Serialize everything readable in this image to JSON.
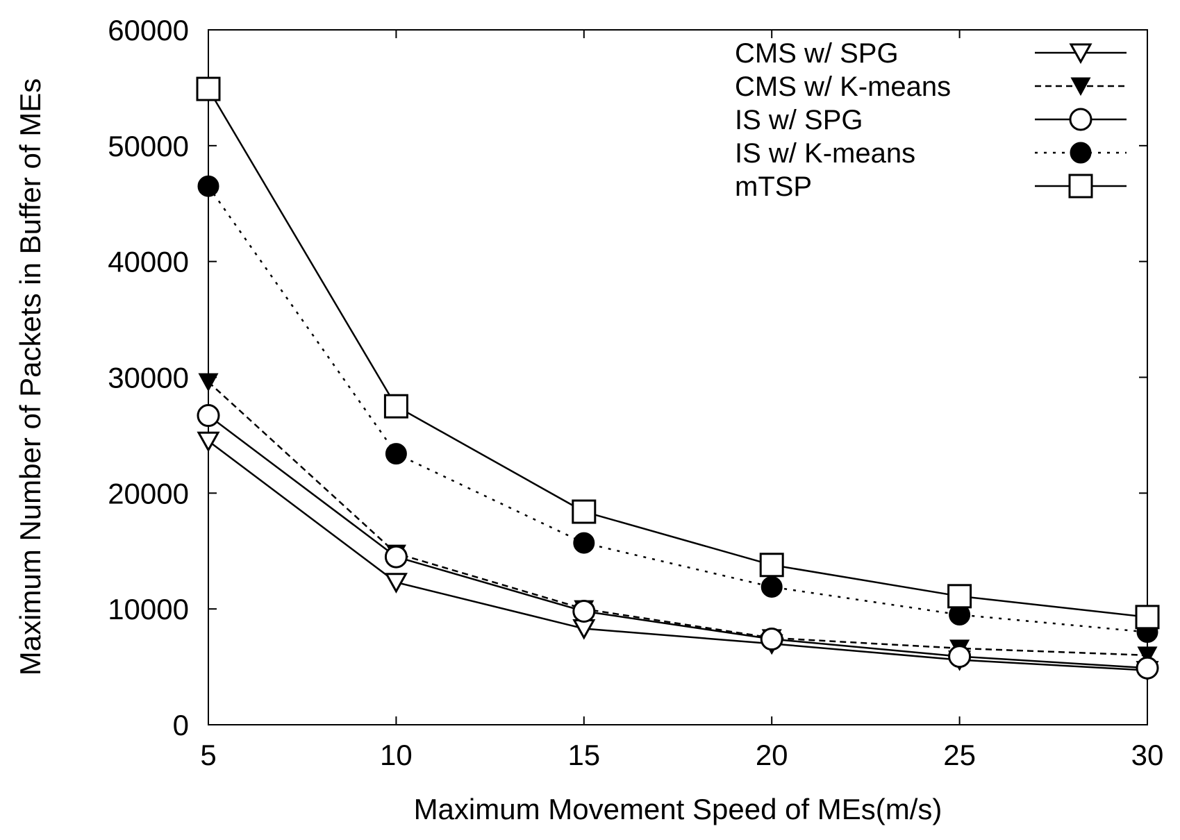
{
  "chart_data": {
    "type": "line",
    "title": "",
    "xlabel": "Maximum Movement Speed of MEs(m/s)",
    "ylabel": "Maximum Number of Packets in Buffer of MEs",
    "x": [
      5,
      10,
      15,
      20,
      25,
      30
    ],
    "xlim": [
      5,
      30
    ],
    "ylim": [
      0,
      60000
    ],
    "xticks": [
      "5",
      "10",
      "15",
      "20",
      "25",
      "30"
    ],
    "yticks": [
      "0",
      "10000",
      "20000",
      "30000",
      "40000",
      "50000",
      "60000"
    ],
    "grid": false,
    "legend_position": "top-right",
    "series": [
      {
        "name": "CMS w/ SPG",
        "values": [
          24500,
          12300,
          8300,
          7000,
          5600,
          4700
        ],
        "marker": "triangle-down-open",
        "line_style": "solid"
      },
      {
        "name": "CMS w/ K-means",
        "values": [
          29600,
          14800,
          10000,
          7500,
          6600,
          6000
        ],
        "marker": "triangle-down-filled",
        "line_style": "dashed"
      },
      {
        "name": "IS w/ SPG",
        "values": [
          26700,
          14500,
          9800,
          7400,
          5900,
          4900
        ],
        "marker": "circle-open",
        "line_style": "solid"
      },
      {
        "name": "IS w/ K-means",
        "values": [
          46500,
          23400,
          15700,
          11900,
          9500,
          8000
        ],
        "marker": "circle-filled",
        "line_style": "dotted"
      },
      {
        "name": "mTSP",
        "values": [
          54900,
          27500,
          18400,
          13800,
          11100,
          9300
        ],
        "marker": "square-open",
        "line_style": "solid"
      }
    ]
  }
}
